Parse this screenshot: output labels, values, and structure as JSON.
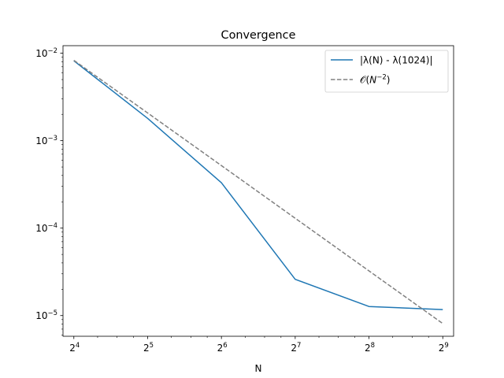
{
  "chart_data": {
    "type": "line",
    "title": "Convergence",
    "xlabel": "N",
    "ylabel": "",
    "x_scale": "log2",
    "y_scale": "log10",
    "x": [
      16,
      32,
      64,
      128,
      256,
      512
    ],
    "x_tick_bases": [
      "2",
      "2",
      "2",
      "2",
      "2",
      "2"
    ],
    "x_tick_exponents": [
      "4",
      "5",
      "6",
      "7",
      "8",
      "9"
    ],
    "y_tick_values": [
      1e-05,
      0.0001,
      0.001,
      0.01
    ],
    "y_tick_bases": [
      "10",
      "10",
      "10",
      "10"
    ],
    "y_tick_exponents": [
      "−5",
      "−4",
      "−3",
      "−2"
    ],
    "xlim": [
      14.45,
      566.8
    ],
    "ylim": [
      5.8e-06,
      0.0122
    ],
    "grid": false,
    "legend_position": "top-right",
    "series": [
      {
        "name": "|λ(N) - λ(1024)|",
        "color": "#1f77b4",
        "dash": "solid",
        "values": [
          0.0082,
          0.0018,
          0.00033,
          2.6e-05,
          1.27e-05,
          1.17e-05
        ]
      },
      {
        "name_prefix": "𝒪(",
        "name_base": "N",
        "name_exponent": "−2",
        "name_suffix": ")",
        "color": "#808080",
        "dash": "dashed",
        "values": [
          0.0083,
          0.002075,
          0.00051875,
          0.0001296875,
          3.24219e-05,
          8.1055e-06
        ]
      }
    ]
  }
}
